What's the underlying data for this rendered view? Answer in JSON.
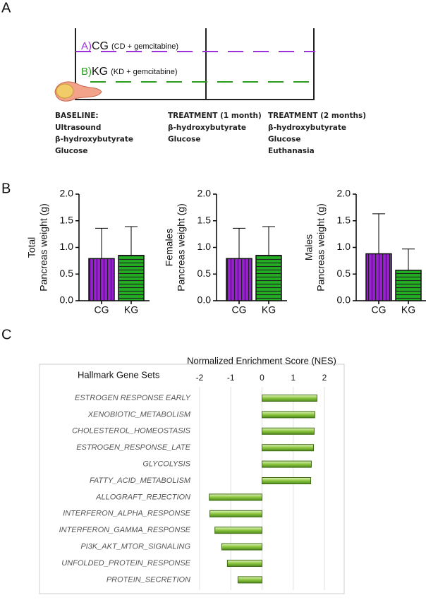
{
  "panel_labels": [
    "A",
    "B",
    "C"
  ],
  "timeline": {
    "arms": [
      {
        "label": "A)",
        "code": "CG",
        "detail": "(CD + gemcitabine)",
        "color": "#9b30d9"
      },
      {
        "label": "B)",
        "code": "KG",
        "detail": "(KD + gemcitabine)",
        "color": "#2a9d1f"
      }
    ],
    "timepoints": [
      {
        "title": "BASELINE:",
        "items": [
          "Ultrasound",
          "β-hydroxybutyrate",
          "Glucose"
        ]
      },
      {
        "title": "TREATMENT (1 month)",
        "items": [
          "β-hydroxybutyrate",
          "Glucose"
        ]
      },
      {
        "title": "TREATMENT (2 months)",
        "items": [
          "β-hydroxybutyrate",
          "Glucose",
          "Euthanasia"
        ]
      }
    ]
  },
  "chart_data": [
    {
      "type": "bar",
      "ylabel": [
        "Total",
        "Pancreas weight (g)"
      ],
      "categories": [
        "CG",
        "KG"
      ],
      "values": [
        0.79,
        0.85
      ],
      "errors": [
        0.57,
        0.54
      ],
      "colors": [
        "#9b1fd4",
        "#22b022"
      ],
      "hatch": [
        "vertical",
        "horizontal"
      ],
      "ylim": [
        0,
        2
      ],
      "yticks": [
        {
          "value": 0,
          "label": "0.0"
        },
        {
          "value": 0.5,
          "label": "0.5"
        },
        {
          "value": 1,
          "label": "1.0"
        },
        {
          "value": 1.5,
          "label": "1.5"
        },
        {
          "value": 2,
          "label": "2.0"
        }
      ]
    },
    {
      "type": "bar",
      "ylabel": [
        "Females",
        "Pancreas weight (g)"
      ],
      "categories": [
        "CG",
        "KG"
      ],
      "values": [
        0.79,
        0.85
      ],
      "errors": [
        0.57,
        0.54
      ],
      "colors": [
        "#9b1fd4",
        "#22b022"
      ],
      "hatch": [
        "vertical",
        "horizontal"
      ],
      "ylim": [
        0,
        2
      ],
      "yticks": [
        {
          "value": 0,
          "label": "0.0"
        },
        {
          "value": 0.5,
          "label": "0.5"
        },
        {
          "value": 1,
          "label": "1.0"
        },
        {
          "value": 1.5,
          "label": "1.5"
        },
        {
          "value": 2,
          "label": "2.0"
        }
      ]
    },
    {
      "type": "bar",
      "ylabel": [
        "Males",
        "Pancreas weight (g)"
      ],
      "categories": [
        "CG",
        "KG"
      ],
      "values": [
        0.88,
        0.57
      ],
      "errors": [
        0.75,
        0.4
      ],
      "colors": [
        "#9b1fd4",
        "#22b022"
      ],
      "hatch": [
        "vertical",
        "horizontal"
      ],
      "ylim": [
        0,
        2
      ],
      "yticks": [
        {
          "value": 0,
          "label": "0.0"
        },
        {
          "value": 0.5,
          "label": "0.5"
        },
        {
          "value": 1,
          "label": "1.0"
        },
        {
          "value": 1.5,
          "label": "1.5"
        },
        {
          "value": 2,
          "label": "2.0"
        }
      ]
    },
    {
      "type": "hbar",
      "title": "Normalized Enrichment Score (NES)",
      "ylabel": "Hallmark Gene Sets",
      "categories": [
        "ESTROGEN RESPONSE EARLY",
        "XENOBIOTIC_METABOLISM",
        "CHOLESTEROL_HOMEOSTASIS",
        "ESTROGEN_RESPONSE_LATE",
        "GLYCOLYSIS",
        "FATTY_ACID_METABOLISM",
        "ALLOGRAFT_REJECTION",
        "INTERFERON_ALPHA_RESPONSE",
        "INTERFERON_GAMMA_RESPONSE",
        "PI3K_AKT_MTOR_SIGNALING",
        "UNFOLDED_PROTEIN_RESPONSE",
        "PROTEIN_SECRETION"
      ],
      "values": [
        1.76,
        1.69,
        1.67,
        1.65,
        1.58,
        1.56,
        -1.69,
        -1.67,
        -1.51,
        -1.29,
        -1.11,
        -0.77
      ],
      "color": "#8cc63f",
      "xlim": [
        -2,
        2
      ],
      "xticks": [
        -2,
        -1,
        0,
        1,
        2
      ],
      "grid": true
    }
  ]
}
